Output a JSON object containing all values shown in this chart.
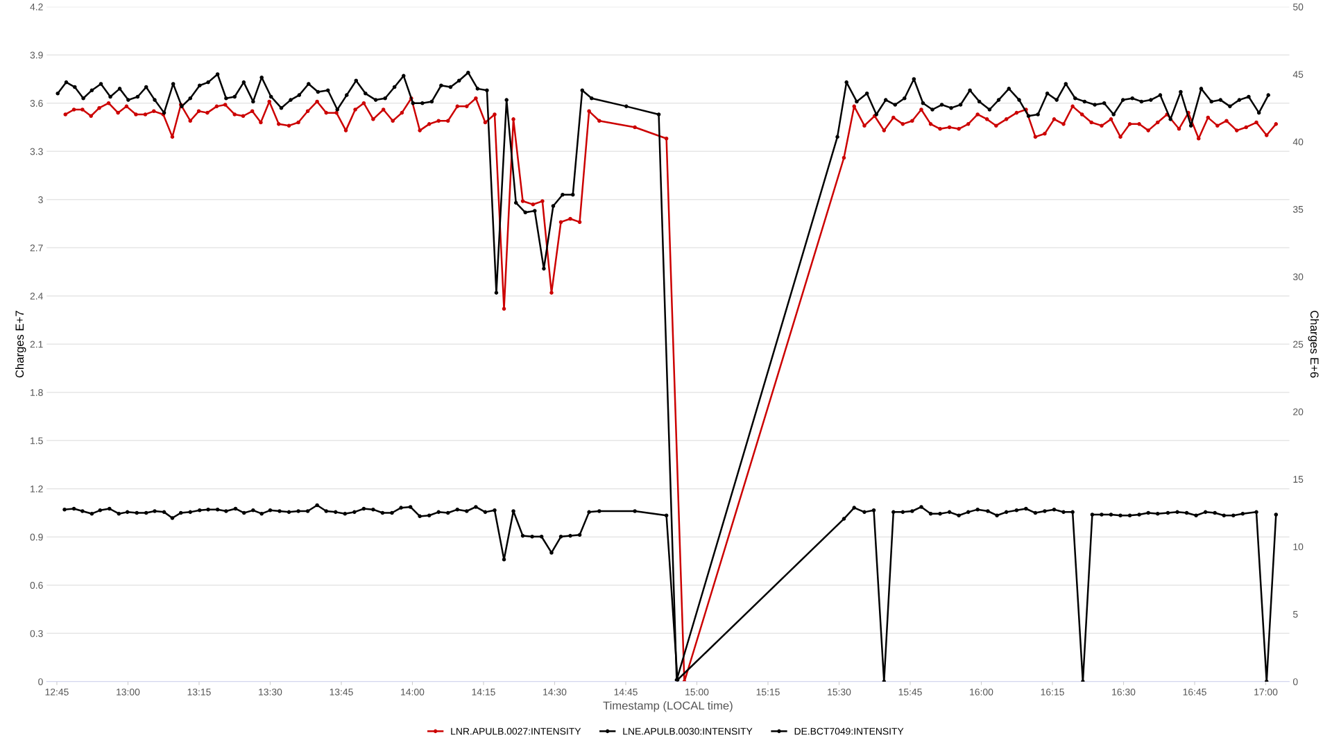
{
  "chart_data": {
    "type": "line",
    "xlabel": "Timestamp (LOCAL time)",
    "ylabel": "Charges E+7",
    "y2label": "Charges E+6",
    "xlim": [
      12.714,
      17.083
    ],
    "xticks": [
      {
        "value": 12.75,
        "label": "12:45"
      },
      {
        "value": 13.0,
        "label": "13:00"
      },
      {
        "value": 13.25,
        "label": "13:15"
      },
      {
        "value": 13.5,
        "label": "13:30"
      },
      {
        "value": 13.75,
        "label": "13:45"
      },
      {
        "value": 14.0,
        "label": "14:00"
      },
      {
        "value": 14.25,
        "label": "14:15"
      },
      {
        "value": 14.5,
        "label": "14:30"
      },
      {
        "value": 14.75,
        "label": "14:45"
      },
      {
        "value": 15.0,
        "label": "15:00"
      },
      {
        "value": 15.25,
        "label": "15:15"
      },
      {
        "value": 15.5,
        "label": "15:30"
      },
      {
        "value": 15.75,
        "label": "15:45"
      },
      {
        "value": 16.0,
        "label": "16:00"
      },
      {
        "value": 16.25,
        "label": "16:15"
      },
      {
        "value": 16.5,
        "label": "16:30"
      },
      {
        "value": 16.75,
        "label": "16:45"
      },
      {
        "value": 17.0,
        "label": "17:00"
      }
    ],
    "ylim": [
      0,
      4.2
    ],
    "yticks": [
      0,
      0.3,
      0.6,
      0.9,
      1.2,
      1.5,
      1.8,
      2.1,
      2.4,
      2.7,
      3,
      3.3,
      3.6,
      3.9,
      4.2
    ],
    "y2lim": [
      0,
      50
    ],
    "y2ticks": [
      0,
      5,
      10,
      15,
      20,
      25,
      30,
      35,
      40,
      45,
      50
    ],
    "grid": "y",
    "legend": "bottom",
    "marker": "circle",
    "line_style": "solid",
    "series": [
      {
        "name": "LNR.APULB.0027:INTENSITY",
        "color": "#cc0000",
        "x": [
          12.78,
          12.81,
          12.84,
          12.87,
          12.899,
          12.932,
          12.965,
          12.995,
          13.028,
          13.061,
          13.091,
          13.124,
          13.156,
          13.186,
          13.219,
          13.249,
          13.279,
          13.312,
          13.342,
          13.375,
          13.405,
          13.437,
          13.467,
          13.497,
          13.53,
          13.566,
          13.599,
          13.632,
          13.665,
          13.697,
          13.733,
          13.766,
          13.799,
          13.829,
          13.862,
          13.898,
          13.931,
          13.963,
          13.996,
          14.026,
          14.059,
          14.092,
          14.125,
          14.158,
          14.191,
          14.223,
          14.256,
          14.289,
          14.322,
          14.355,
          14.388,
          14.424,
          14.457,
          14.489,
          14.522,
          14.555,
          14.588,
          14.621,
          14.657,
          14.782,
          14.893,
          14.956,
          15.517,
          15.553,
          15.589,
          15.625,
          15.658,
          15.691,
          15.724,
          15.757,
          15.789,
          15.822,
          15.855,
          15.888,
          15.921,
          15.954,
          15.987,
          16.02,
          16.052,
          16.088,
          16.124,
          16.157,
          16.19,
          16.223,
          16.256,
          16.289,
          16.321,
          16.354,
          16.387,
          16.423,
          16.456,
          16.489,
          16.522,
          16.555,
          16.587,
          16.62,
          16.653,
          16.695,
          16.728,
          16.764,
          16.797,
          16.83,
          16.862,
          16.898,
          16.931,
          16.967,
          17.003,
          17.036
        ],
        "values": [
          3.53,
          3.56,
          3.56,
          3.52,
          3.57,
          3.6,
          3.54,
          3.58,
          3.53,
          3.53,
          3.55,
          3.53,
          3.39,
          3.59,
          3.49,
          3.55,
          3.54,
          3.58,
          3.59,
          3.53,
          3.52,
          3.55,
          3.48,
          3.61,
          3.47,
          3.46,
          3.48,
          3.55,
          3.61,
          3.54,
          3.54,
          3.43,
          3.56,
          3.6,
          3.5,
          3.56,
          3.49,
          3.54,
          3.63,
          3.43,
          3.47,
          3.49,
          3.49,
          3.58,
          3.58,
          3.63,
          3.48,
          3.53,
          2.32,
          3.5,
          2.99,
          2.97,
          2.99,
          2.42,
          2.86,
          2.88,
          2.86,
          3.55,
          3.49,
          3.45,
          3.38,
          0,
          3.26,
          3.58,
          3.46,
          3.52,
          3.43,
          3.51,
          3.47,
          3.49,
          3.56,
          3.47,
          3.44,
          3.45,
          3.44,
          3.47,
          3.53,
          3.5,
          3.46,
          3.5,
          3.54,
          3.56,
          3.39,
          3.41,
          3.5,
          3.47,
          3.58,
          3.53,
          3.48,
          3.46,
          3.5,
          3.39,
          3.47,
          3.47,
          3.43,
          3.48,
          3.53,
          3.44,
          3.54,
          3.38,
          3.51,
          3.46,
          3.49,
          3.43,
          3.45,
          3.48,
          3.4,
          3.47
        ]
      },
      {
        "name": "LNE.APULB.0030:INTENSITY",
        "color": "#000000",
        "x": [
          12.753,
          12.783,
          12.813,
          12.843,
          12.873,
          12.905,
          12.938,
          12.971,
          13.001,
          13.034,
          13.064,
          13.094,
          13.127,
          13.159,
          13.189,
          13.219,
          13.252,
          13.282,
          13.315,
          13.345,
          13.375,
          13.407,
          13.44,
          13.47,
          13.503,
          13.539,
          13.572,
          13.602,
          13.635,
          13.668,
          13.703,
          13.736,
          13.769,
          13.802,
          13.835,
          13.871,
          13.904,
          13.937,
          13.969,
          14.002,
          14.035,
          14.068,
          14.101,
          14.134,
          14.164,
          14.196,
          14.229,
          14.262,
          14.295,
          14.331,
          14.364,
          14.397,
          14.43,
          14.462,
          14.495,
          14.528,
          14.564,
          14.597,
          14.63,
          14.752,
          14.866,
          14.929,
          15.494,
          15.526,
          15.562,
          15.598,
          15.631,
          15.664,
          15.697,
          15.73,
          15.763,
          15.795,
          15.828,
          15.861,
          15.894,
          15.927,
          15.96,
          15.993,
          16.029,
          16.061,
          16.097,
          16.133,
          16.166,
          16.199,
          16.232,
          16.265,
          16.297,
          16.33,
          16.363,
          16.399,
          16.432,
          16.465,
          16.498,
          16.531,
          16.563,
          16.596,
          16.629,
          16.665,
          16.701,
          16.737,
          16.773,
          16.809,
          16.841,
          16.874,
          16.907,
          16.94,
          16.976,
          17.009
        ],
        "values": [
          3.66,
          3.73,
          3.7,
          3.63,
          3.68,
          3.72,
          3.64,
          3.69,
          3.62,
          3.64,
          3.7,
          3.62,
          3.54,
          3.72,
          3.58,
          3.63,
          3.71,
          3.73,
          3.78,
          3.63,
          3.64,
          3.73,
          3.61,
          3.76,
          3.64,
          3.57,
          3.62,
          3.65,
          3.72,
          3.67,
          3.68,
          3.56,
          3.65,
          3.74,
          3.66,
          3.62,
          3.63,
          3.7,
          3.77,
          3.6,
          3.6,
          3.61,
          3.71,
          3.7,
          3.74,
          3.79,
          3.69,
          3.68,
          2.42,
          3.62,
          2.98,
          2.92,
          2.93,
          2.57,
          2.96,
          3.03,
          3.03,
          3.68,
          3.63,
          3.58,
          3.53,
          0.01,
          3.39,
          3.73,
          3.61,
          3.66,
          3.53,
          3.62,
          3.59,
          3.63,
          3.75,
          3.6,
          3.56,
          3.59,
          3.57,
          3.59,
          3.68,
          3.61,
          3.56,
          3.62,
          3.69,
          3.62,
          3.52,
          3.53,
          3.66,
          3.62,
          3.72,
          3.63,
          3.61,
          3.59,
          3.6,
          3.53,
          3.62,
          3.63,
          3.61,
          3.62,
          3.65,
          3.5,
          3.67,
          3.46,
          3.69,
          3.61,
          3.62,
          3.58,
          3.62,
          3.64,
          3.54,
          3.65
        ]
      },
      {
        "name": "DE.BCT7049:INTENSITY",
        "color": "#000000",
        "axis": "y2",
        "x": [
          12.777,
          12.81,
          12.84,
          12.873,
          12.902,
          12.935,
          12.968,
          12.998,
          13.031,
          13.064,
          13.094,
          13.127,
          13.156,
          13.186,
          13.219,
          13.252,
          13.282,
          13.315,
          13.345,
          13.378,
          13.408,
          13.44,
          13.47,
          13.5,
          13.533,
          13.566,
          13.599,
          13.632,
          13.665,
          13.697,
          13.73,
          13.763,
          13.796,
          13.829,
          13.862,
          13.895,
          13.928,
          13.96,
          13.993,
          14.026,
          14.059,
          14.092,
          14.125,
          14.158,
          14.191,
          14.223,
          14.256,
          14.289,
          14.322,
          14.355,
          14.388,
          14.421,
          14.454,
          14.489,
          14.522,
          14.555,
          14.588,
          14.621,
          14.657,
          14.782,
          14.893,
          14.932,
          15.517,
          15.553,
          15.589,
          15.622,
          15.658,
          15.691,
          15.724,
          15.757,
          15.789,
          15.822,
          15.855,
          15.888,
          15.921,
          15.954,
          15.987,
          16.023,
          16.055,
          16.088,
          16.124,
          16.157,
          16.19,
          16.223,
          16.256,
          16.289,
          16.321,
          16.357,
          16.39,
          16.423,
          16.456,
          16.489,
          16.522,
          16.555,
          16.587,
          16.62,
          16.656,
          16.689,
          16.722,
          16.755,
          16.788,
          16.821,
          16.853,
          16.886,
          16.919,
          16.967,
          17.003,
          17.036
        ],
        "values": [
          12.75,
          12.81,
          12.63,
          12.44,
          12.69,
          12.81,
          12.44,
          12.56,
          12.5,
          12.5,
          12.63,
          12.56,
          12.12,
          12.5,
          12.56,
          12.69,
          12.75,
          12.75,
          12.63,
          12.81,
          12.5,
          12.69,
          12.44,
          12.69,
          12.63,
          12.56,
          12.63,
          12.63,
          13.07,
          12.63,
          12.56,
          12.44,
          12.56,
          12.81,
          12.75,
          12.5,
          12.5,
          12.88,
          12.94,
          12.25,
          12.31,
          12.56,
          12.5,
          12.75,
          12.63,
          12.94,
          12.56,
          12.69,
          9.05,
          12.63,
          10.8,
          10.74,
          10.74,
          9.55,
          10.74,
          10.8,
          10.87,
          12.56,
          12.63,
          12.63,
          12.31,
          0.13,
          12.06,
          12.88,
          12.56,
          12.69,
          0,
          12.56,
          12.56,
          12.63,
          12.94,
          12.44,
          12.44,
          12.56,
          12.31,
          12.56,
          12.75,
          12.63,
          12.31,
          12.56,
          12.69,
          12.81,
          12.5,
          12.63,
          12.75,
          12.56,
          12.56,
          0,
          12.37,
          12.37,
          12.37,
          12.31,
          12.31,
          12.37,
          12.5,
          12.44,
          12.5,
          12.56,
          12.5,
          12.31,
          12.56,
          12.5,
          12.31,
          12.31,
          12.44,
          12.56,
          0,
          12.37
        ]
      }
    ]
  }
}
